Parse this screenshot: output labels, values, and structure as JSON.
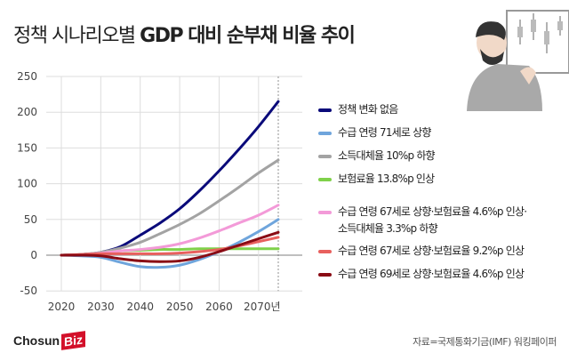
{
  "title_regular": "정책 시나리오별 ",
  "title_bold": "GDP 대비 순부채 비율 추이",
  "source": "자료=국제통화기금(IMF) 워킹페이퍼",
  "logo": {
    "main": "Chosun",
    "accent": "Biz"
  },
  "chart_data": {
    "type": "line",
    "title": "정책 시나리오별 GDP 대비 순부채 비율 추이",
    "xlabel": "",
    "ylabel": "",
    "x": [
      2020,
      2025,
      2030,
      2035,
      2040,
      2045,
      2050,
      2055,
      2060,
      2065,
      2070,
      2075
    ],
    "x_ticks": [
      2020,
      2030,
      2040,
      2050,
      2060,
      2070
    ],
    "x_tick_labels": [
      "2020",
      "2030",
      "2040",
      "2050",
      "2060",
      "2070년"
    ],
    "y_ticks": [
      250,
      200,
      150,
      100,
      50,
      0,
      -50
    ],
    "y_tick_labels": [
      "250",
      "200",
      "150",
      "100",
      "50",
      "0",
      "-50"
    ],
    "xlim": [
      2020,
      2075
    ],
    "ylim": [
      -50,
      250
    ],
    "grid": true,
    "legend_placement": "right",
    "series": [
      {
        "name": "정책 변화 없음",
        "color": "#0a0a7a",
        "values": [
          0,
          1,
          4,
          12,
          28,
          45,
          65,
          90,
          118,
          148,
          180,
          215
        ]
      },
      {
        "name": "수급 연령 71세로 상향",
        "color": "#6fa5dc",
        "values": [
          0,
          -1,
          -3,
          -10,
          -16,
          -17,
          -14,
          -6,
          5,
          18,
          33,
          50
        ]
      },
      {
        "name": "소득대체율 10%p 하향",
        "color": "#a3a3a3",
        "values": [
          0,
          1,
          4,
          10,
          18,
          30,
          43,
          58,
          76,
          95,
          115,
          133
        ]
      },
      {
        "name": "보험료율 13.8%p 인상",
        "color": "#7fd14a",
        "values": [
          0,
          1,
          3,
          6,
          7,
          8,
          8,
          9,
          9,
          9,
          9,
          9
        ]
      },
      {
        "name": "수급 연령 67세로 상향·보험료율 4.6%p 인상·",
        "name2": "소득대체율 3.3%p 하향",
        "color": "#f39ad8",
        "values": [
          0,
          1,
          3,
          6,
          8,
          11,
          16,
          24,
          34,
          45,
          56,
          70
        ]
      },
      {
        "name": "수급 연령 67세로 상향·보험료율 9.2%p 인상",
        "color": "#e8605e",
        "values": [
          0,
          1,
          2,
          2,
          2,
          2,
          3,
          5,
          8,
          13,
          19,
          25
        ]
      },
      {
        "name": "수급 연령 69세로 상향·보험료율 4.6%p 인상",
        "color": "#8a0b14",
        "values": [
          0,
          0,
          -1,
          -5,
          -8,
          -9,
          -8,
          -3,
          5,
          14,
          23,
          32
        ]
      }
    ]
  }
}
